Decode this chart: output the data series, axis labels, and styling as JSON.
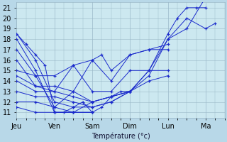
{
  "xlabel": "Température (°c)",
  "bg_color": "#b8d8e8",
  "plot_bg_color": "#cce8f0",
  "grid_color": "#9ab8c8",
  "line_color": "#1a2acc",
  "marker": "+",
  "xlim": [
    0,
    5.5
  ],
  "ylim": [
    10.5,
    21.5
  ],
  "yticks": [
    11,
    12,
    13,
    14,
    15,
    16,
    17,
    18,
    19,
    20,
    21
  ],
  "xlabel_fontsize": 7,
  "tick_fontsize": 7,
  "day_ticks": [
    0,
    1,
    2,
    3,
    4,
    5
  ],
  "day_labels": [
    "Jeu",
    "Ven",
    "Sam",
    "Dim",
    "Lun",
    "Ma"
  ],
  "series": [
    [
      0.0,
      18.5,
      0.25,
      17.5,
      0.5,
      16.5,
      0.75,
      15.5,
      1.0,
      11.0,
      1.25,
      11.0,
      1.5,
      11.5,
      1.75,
      12.0,
      2.0,
      11.0,
      2.25,
      11.5,
      2.5,
      12.5,
      2.75,
      13.0,
      3.0,
      13.0,
      3.5,
      15.0,
      4.0,
      18.5,
      4.25,
      20.0,
      4.5,
      21.0,
      4.75,
      21.0,
      5.0,
      21.0
    ],
    [
      0.0,
      18.5,
      0.5,
      16.0,
      1.0,
      12.0,
      1.5,
      11.5,
      2.0,
      11.5,
      2.5,
      12.0,
      3.0,
      13.0,
      3.5,
      15.0,
      4.0,
      18.0,
      4.5,
      20.0,
      5.0,
      19.0,
      5.25,
      19.5
    ],
    [
      0.0,
      18.0,
      0.5,
      15.0,
      1.0,
      11.0,
      1.5,
      11.0,
      2.0,
      12.0,
      2.5,
      12.5,
      3.0,
      13.0,
      3.5,
      14.5,
      4.0,
      18.0,
      4.5,
      19.0,
      5.0,
      22.0
    ],
    [
      0.0,
      17.0,
      0.5,
      14.5,
      1.0,
      11.5,
      1.5,
      13.0,
      2.0,
      16.0,
      2.25,
      16.5,
      2.5,
      15.0,
      3.0,
      16.5,
      3.5,
      17.0,
      4.0,
      17.5
    ],
    [
      0.0,
      16.0,
      0.5,
      13.5,
      1.0,
      13.0,
      1.5,
      15.5,
      2.0,
      16.0,
      2.5,
      14.0,
      3.0,
      16.5,
      3.5,
      17.0,
      4.0,
      17.0
    ],
    [
      0.0,
      15.0,
      0.5,
      14.5,
      1.0,
      14.5,
      1.5,
      15.5,
      2.0,
      13.0,
      2.5,
      13.0,
      3.0,
      15.0,
      3.5,
      15.0,
      4.0,
      15.0
    ],
    [
      0.0,
      14.5,
      0.5,
      13.5,
      1.0,
      13.5,
      1.5,
      13.0,
      2.0,
      12.0,
      2.5,
      12.5,
      3.0,
      13.0,
      3.5,
      14.0,
      4.0,
      14.5
    ],
    [
      0.0,
      14.0,
      0.5,
      13.0,
      1.0,
      13.0,
      1.5,
      12.5,
      2.0,
      12.0,
      2.5,
      12.5,
      3.0,
      13.0
    ],
    [
      0.0,
      13.0,
      0.5,
      12.5,
      1.0,
      12.5,
      1.5,
      12.0,
      2.0,
      11.5,
      2.5,
      12.0,
      3.0,
      13.0
    ],
    [
      0.0,
      12.0,
      0.5,
      12.0,
      1.0,
      11.5,
      1.5,
      11.0,
      2.0,
      11.0
    ],
    [
      0.0,
      11.5,
      0.5,
      11.0,
      1.0,
      11.0,
      1.5,
      11.0,
      2.0,
      11.0
    ]
  ]
}
